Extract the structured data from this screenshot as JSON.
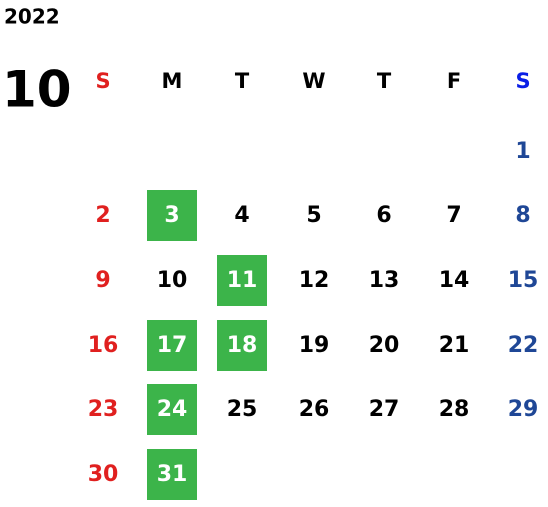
{
  "calendar": {
    "year": "2022",
    "month": "10",
    "weekdays": [
      "S",
      "M",
      "T",
      "W",
      "T",
      "F",
      "S"
    ],
    "weeks": [
      [
        null,
        null,
        null,
        null,
        null,
        null,
        1
      ],
      [
        2,
        3,
        4,
        5,
        6,
        7,
        8
      ],
      [
        9,
        10,
        11,
        12,
        13,
        14,
        15
      ],
      [
        16,
        17,
        18,
        19,
        20,
        21,
        22
      ],
      [
        23,
        24,
        25,
        26,
        27,
        28,
        29
      ],
      [
        30,
        31,
        null,
        null,
        null,
        null,
        null
      ]
    ],
    "highlighted": [
      3,
      11,
      17,
      18,
      24,
      31
    ]
  }
}
